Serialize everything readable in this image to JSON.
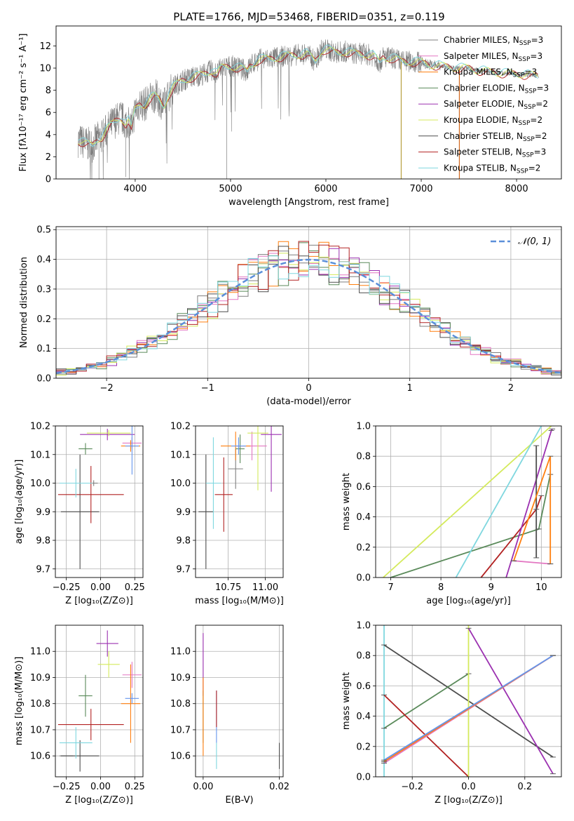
{
  "figure": {
    "title": "PLATE=1766, MJD=53468, FIBERID=0351, z=0.119"
  },
  "colors": {
    "Chabrier MILES": "#7f7f7f",
    "Salpeter MILES": "#e377c2",
    "Kroupa MILES": "#ff7f0e",
    "Chabrier ELODIE": "#5a8a5a",
    "Salpeter ELODIE": "#9b30b0",
    "Kroupa ELODIE": "#d4ea5c",
    "Chabrier STELIB": "#4d4d4d",
    "Salpeter STELIB": "#b22222",
    "Kroupa STELIB": "#7fd7df",
    "extra_blue": "#6495ed",
    "gaussian": "#5b8fd9"
  },
  "chart_data": [
    {
      "id": "spectrum",
      "type": "line",
      "title": "PLATE=1766, MJD=53468, FIBERID=0351, z=0.119",
      "xlabel": "wavelength [Angstrom, rest frame]",
      "ylabel": "Flux [fλ10⁻¹⁷ erg cm⁻² s⁻¹ A⁻¹]",
      "xlim": [
        3170,
        8470
      ],
      "ylim": [
        0,
        13.8
      ],
      "xticks": [
        4000,
        5000,
        6000,
        7000,
        8000
      ],
      "yticks": [
        0,
        2,
        4,
        6,
        8,
        10,
        12
      ],
      "x_range_data": [
        3400,
        8230
      ],
      "continuum": [
        [
          3400,
          3.5
        ],
        [
          3480,
          3.2
        ],
        [
          3550,
          3.0
        ],
        [
          3600,
          3.6
        ],
        [
          3650,
          3.8
        ],
        [
          3700,
          4.4
        ],
        [
          3750,
          4.9
        ],
        [
          3800,
          5.3
        ],
        [
          3850,
          5.6
        ],
        [
          3900,
          5.0
        ],
        [
          3930,
          5.3
        ],
        [
          3960,
          4.5
        ],
        [
          4000,
          6.3
        ],
        [
          4050,
          6.8
        ],
        [
          4100,
          6.7
        ],
        [
          4150,
          7.2
        ],
        [
          4200,
          7.5
        ],
        [
          4250,
          7.2
        ],
        [
          4300,
          6.6
        ],
        [
          4350,
          7.6
        ],
        [
          4400,
          8.3
        ],
        [
          4450,
          8.6
        ],
        [
          4500,
          8.9
        ],
        [
          4600,
          9.2
        ],
        [
          4700,
          9.4
        ],
        [
          4800,
          9.8
        ],
        [
          4861,
          9.5
        ],
        [
          4900,
          10.0
        ],
        [
          5000,
          10.2
        ],
        [
          5100,
          10.0
        ],
        [
          5175,
          9.7
        ],
        [
          5200,
          10.2
        ],
        [
          5300,
          10.8
        ],
        [
          5400,
          10.8
        ],
        [
          5500,
          11.0
        ],
        [
          5600,
          11.1
        ],
        [
          5700,
          11.2
        ],
        [
          5800,
          11.3
        ],
        [
          5890,
          10.6
        ],
        [
          5950,
          11.6
        ],
        [
          6000,
          11.7
        ],
        [
          6100,
          11.4
        ],
        [
          6200,
          11.5
        ],
        [
          6300,
          11.3
        ],
        [
          6400,
          11.3
        ],
        [
          6500,
          11.1
        ],
        [
          6563,
          10.5
        ],
        [
          6600,
          11.0
        ],
        [
          6700,
          10.9
        ],
        [
          6800,
          10.6
        ],
        [
          6900,
          10.6
        ],
        [
          7000,
          10.5
        ],
        [
          7100,
          10.3
        ],
        [
          7200,
          10.2
        ],
        [
          7300,
          10.1
        ],
        [
          7400,
          10.0
        ],
        [
          7500,
          10.0
        ],
        [
          7600,
          9.8
        ],
        [
          7700,
          9.7
        ],
        [
          7800,
          9.6
        ],
        [
          7900,
          9.5
        ],
        [
          8000,
          9.5
        ],
        [
          8100,
          9.4
        ],
        [
          8230,
          9.3
        ]
      ],
      "observed_dips": [
        [
          4960,
          0.0
        ],
        [
          3620,
          0.0
        ],
        [
          3900,
          0.3
        ],
        [
          6790,
          0.0
        ],
        [
          7400,
          0.0
        ]
      ],
      "legend": [
        "Chabrier MILES, N_SSP=3",
        "Salpeter MILES, N_SSP=3",
        "Kroupa MILES, N_SSP=3",
        "Chabrier ELODIE, N_SSP=3",
        "Salpeter ELODIE, N_SSP=2",
        "Kroupa ELODIE, N_SSP=2",
        "Chabrier STELIB, N_SSP=2",
        "Salpeter STELIB, N_SSP=3",
        "Kroupa STELIB, N_SSP=2"
      ],
      "legend_placement": "right"
    },
    {
      "id": "residuals",
      "type": "line",
      "xlabel": "(data-model)/error",
      "ylabel": "Normed distribution",
      "xlim": [
        -2.5,
        2.5
      ],
      "ylim": [
        0,
        0.51
      ],
      "xticks": [
        -2,
        -1,
        0,
        1,
        2
      ],
      "yticks": [
        0.0,
        0.1,
        0.2,
        0.3,
        0.4,
        0.5
      ],
      "grid": true,
      "legend": [
        "𝒩(0, 1)"
      ],
      "legend_placement": "top-right",
      "bin_width": 0.1,
      "curve": "gaussian N(0,1)"
    },
    {
      "id": "age-vs-Z",
      "type": "scatter",
      "xlabel": "Z [log₁₀(Z/Z⊙)]",
      "ylabel": "age  [log₁₀(age/yr)]",
      "xlim": [
        -0.33,
        0.31
      ],
      "ylim": [
        9.67,
        10.2
      ],
      "xticks": [
        -0.25,
        0.0,
        0.25
      ],
      "yticks": [
        9.7,
        9.8,
        9.9,
        10.0,
        10.1,
        10.2
      ],
      "points": [
        {
          "s": "Chabrier MILES",
          "x": -0.05,
          "y": 10.0,
          "xe": 0.03,
          "ye": 0.01
        },
        {
          "s": "Salpeter MILES",
          "x": 0.23,
          "y": 10.14,
          "xe": 0.07,
          "ye": 0.02
        },
        {
          "s": "Kroupa MILES",
          "x": 0.22,
          "y": 10.13,
          "xe": 0.07,
          "ye": 0.02
        },
        {
          "s": "Chabrier ELODIE",
          "x": -0.11,
          "y": 10.12,
          "xe": 0.05,
          "ye": 0.02
        },
        {
          "s": "Salpeter ELODIE",
          "x": 0.05,
          "y": 10.17,
          "xe": 0.2,
          "ye": 0.02
        },
        {
          "s": "Kroupa ELODIE",
          "x": 0.06,
          "y": 10.175,
          "xe": 0.16,
          "ye": 0.01
        },
        {
          "s": "Chabrier STELIB",
          "x": -0.15,
          "y": 9.9,
          "xe": 0.14,
          "ye": 0.2
        },
        {
          "s": "Salpeter STELIB",
          "x": -0.07,
          "y": 9.96,
          "xe": 0.24,
          "ye": 0.1
        },
        {
          "s": "Kroupa STELIB",
          "x": -0.18,
          "y": 10.0,
          "xe": 0.12,
          "ye": 0.05
        },
        {
          "s": "extra_blue",
          "x": 0.23,
          "y": 10.13,
          "xe": 0.05,
          "ye": 0.1
        }
      ]
    },
    {
      "id": "age-vs-mass",
      "type": "scatter",
      "xlabel": "mass [log₁₀(M/M⊙)]",
      "ylabel": "",
      "xlim": [
        10.53,
        11.12
      ],
      "ylim": [
        9.67,
        10.2
      ],
      "xticks": [
        10.75,
        11.0
      ],
      "yticks": [
        9.7,
        9.8,
        9.9,
        10.0,
        10.1,
        10.2
      ],
      "points": [
        {
          "s": "Chabrier MILES",
          "x": 10.8,
          "y": 10.05,
          "xe": 0.05,
          "ye": 0.07
        },
        {
          "s": "Salpeter MILES",
          "x": 10.91,
          "y": 10.13,
          "xe": 0.1,
          "ye": 0.05
        },
        {
          "s": "Kroupa MILES",
          "x": 10.8,
          "y": 10.13,
          "xe": 0.1,
          "ye": 0.05
        },
        {
          "s": "Chabrier ELODIE",
          "x": 10.83,
          "y": 10.12,
          "xe": 0.03,
          "ye": 0.05
        },
        {
          "s": "Salpeter ELODIE",
          "x": 11.04,
          "y": 10.17,
          "xe": 0.07,
          "ye": 0.2
        },
        {
          "s": "Kroupa ELODIE",
          "x": 10.95,
          "y": 10.175,
          "xe": 0.07,
          "ye": 0.2
        },
        {
          "s": "Chabrier STELIB",
          "x": 10.6,
          "y": 9.9,
          "xe": 0.05,
          "ye": 0.2
        },
        {
          "s": "Salpeter STELIB",
          "x": 10.72,
          "y": 9.96,
          "xe": 0.06,
          "ye": 0.13
        },
        {
          "s": "Kroupa STELIB",
          "x": 10.65,
          "y": 10.0,
          "xe": 0.05,
          "ye": 0.16
        },
        {
          "s": "extra_blue",
          "x": 10.82,
          "y": 10.13,
          "xe": 0.05,
          "ye": 0.03
        }
      ]
    },
    {
      "id": "mass-weight-vs-age",
      "type": "line",
      "xlabel": "age  [log₁₀(age/yr)]",
      "ylabel": "mass weight",
      "xlim": [
        6.7,
        10.4
      ],
      "ylim": [
        0,
        1.0
      ],
      "xticks": [
        7,
        8,
        9,
        10
      ],
      "yticks": [
        0.0,
        0.2,
        0.4,
        0.6,
        0.8,
        1.0
      ],
      "grid": true,
      "series": [
        {
          "s": "Kroupa ELODIE",
          "x": [
            6.85,
            10.2
          ],
          "y": [
            0.0,
            1.0
          ]
        },
        {
          "s": "Chabrier ELODIE",
          "x": [
            7.0,
            9.95,
            10.18
          ],
          "y": [
            0.0,
            0.32,
            0.68
          ]
        },
        {
          "s": "Kroupa STELIB",
          "x": [
            8.3,
            10.0
          ],
          "y": [
            0.0,
            1.0
          ]
        },
        {
          "s": "Salpeter STELIB",
          "x": [
            8.8,
            9.9,
            10.0
          ],
          "y": [
            0.0,
            0.45,
            0.54
          ]
        },
        {
          "s": "Salpeter ELODIE",
          "x": [
            9.3,
            10.2,
            10.22
          ],
          "y": [
            0.0,
            0.97,
            0.98
          ]
        },
        {
          "s": "Chabrier STELIB",
          "x": [
            9.9,
            9.9
          ],
          "y": [
            0.13,
            0.87
          ]
        },
        {
          "s": "Salpeter MILES",
          "x": [
            9.45,
            10.18
          ],
          "y": [
            0.11,
            0.09
          ]
        },
        {
          "s": "Kroupa MILES",
          "x": [
            9.45,
            10.18,
            10.18
          ],
          "y": [
            0.11,
            0.8,
            0.09
          ]
        }
      ]
    },
    {
      "id": "mass-vs-Z",
      "type": "scatter",
      "xlabel": "Z [log₁₀(Z/Z⊙)]",
      "ylabel": "mass [log₁₀(M/M⊙)]",
      "xlim": [
        -0.33,
        0.31
      ],
      "ylim": [
        10.52,
        11.1
      ],
      "xticks": [
        -0.25,
        0.0,
        0.25
      ],
      "yticks": [
        10.6,
        10.7,
        10.8,
        10.9,
        11.0
      ],
      "points": [
        {
          "s": "Chabrier MILES",
          "x": -0.25,
          "y": 10.6,
          "xe": 0.05,
          "ye": 0.0
        },
        {
          "s": "Salpeter MILES",
          "x": 0.23,
          "y": 10.91,
          "xe": 0.07,
          "ye": 0.05
        },
        {
          "s": "Kroupa MILES",
          "x": 0.22,
          "y": 10.8,
          "xe": 0.07,
          "ye": 0.15
        },
        {
          "s": "Chabrier ELODIE",
          "x": -0.11,
          "y": 10.83,
          "xe": 0.05,
          "ye": 0.08
        },
        {
          "s": "Salpeter ELODIE",
          "x": 0.05,
          "y": 11.03,
          "xe": 0.08,
          "ye": 0.05
        },
        {
          "s": "Kroupa ELODIE",
          "x": 0.06,
          "y": 10.95,
          "xe": 0.08,
          "ye": 0.05
        },
        {
          "s": "Chabrier STELIB",
          "x": -0.15,
          "y": 10.6,
          "xe": 0.14,
          "ye": 0.06
        },
        {
          "s": "Salpeter STELIB",
          "x": -0.07,
          "y": 10.72,
          "xe": 0.24,
          "ye": 0.06
        },
        {
          "s": "Kroupa STELIB",
          "x": -0.18,
          "y": 10.65,
          "xe": 0.12,
          "ye": 0.06
        },
        {
          "s": "extra_blue",
          "x": 0.23,
          "y": 10.82,
          "xe": 0.05,
          "ye": 0.02
        }
      ]
    },
    {
      "id": "mass-vs-EBV",
      "type": "scatter",
      "xlabel": "E(B-V)",
      "ylabel": "",
      "xlim": [
        -0.002,
        0.021
      ],
      "ylim": [
        10.52,
        11.1
      ],
      "xticks": [
        0.0,
        0.02
      ],
      "yticks": [
        10.6,
        10.7,
        10.8,
        10.9,
        11.0
      ],
      "points": [
        {
          "s": "Salpeter ELODIE",
          "x": 0.0,
          "y": 10.95,
          "xe": 0.0,
          "ye": 0.12
        },
        {
          "s": "Chabrier ELODIE",
          "x": 0.0,
          "y": 10.75,
          "xe": 0.0,
          "ye": 0.1
        },
        {
          "s": "Kroupa MILES",
          "x": 0.0,
          "y": 10.75,
          "xe": 0.0,
          "ye": 0.15
        },
        {
          "s": "extra_blue",
          "x": 0.0035,
          "y": 10.75,
          "xe": 0.0,
          "ye": 0.1
        },
        {
          "s": "Salpeter STELIB",
          "x": 0.0035,
          "y": 10.78,
          "xe": 0.0,
          "ye": 0.07
        },
        {
          "s": "Kroupa STELIB",
          "x": 0.0035,
          "y": 10.6,
          "xe": 0.0,
          "ye": 0.05
        },
        {
          "s": "Chabrier STELIB",
          "x": 0.02,
          "y": 10.6,
          "xe": 0.0,
          "ye": 0.05
        }
      ]
    },
    {
      "id": "mass-weight-vs-Z",
      "type": "line",
      "xlabel": "Z [log₁₀(Z/Z⊙)]",
      "ylabel": "mass weight",
      "xlim": [
        -0.33,
        0.33
      ],
      "ylim": [
        0,
        1.0
      ],
      "xticks": [
        -0.2,
        0.0,
        0.2
      ],
      "yticks": [
        0.0,
        0.2,
        0.4,
        0.6,
        0.8,
        1.0
      ],
      "grid": true,
      "series": [
        {
          "s": "Kroupa STELIB",
          "x": [
            -0.3,
            -0.3
          ],
          "y": [
            0.0,
            1.0
          ]
        },
        {
          "s": "Chabrier STELIB",
          "x": [
            -0.3,
            0.3
          ],
          "y": [
            0.87,
            0.13
          ]
        },
        {
          "s": "Chabrier ELODIE",
          "x": [
            -0.3,
            0.0
          ],
          "y": [
            0.32,
            0.68
          ]
        },
        {
          "s": "Salpeter STELIB",
          "x": [
            -0.3,
            0.0
          ],
          "y": [
            0.54,
            0.0
          ]
        },
        {
          "s": "Kroupa ELODIE",
          "x": [
            0.0,
            0.0
          ],
          "y": [
            0.0,
            1.0
          ]
        },
        {
          "s": "Salpeter ELODIE",
          "x": [
            0.0,
            0.3
          ],
          "y": [
            0.98,
            0.02
          ]
        },
        {
          "s": "Salpeter MILES",
          "x": [
            -0.3,
            0.3
          ],
          "y": [
            0.09,
            0.8
          ]
        },
        {
          "s": "Kroupa MILES",
          "x": [
            -0.3,
            0.3
          ],
          "y": [
            0.1,
            0.8
          ]
        },
        {
          "s": "extra_blue",
          "x": [
            -0.3,
            0.3
          ],
          "y": [
            0.11,
            0.8
          ]
        }
      ]
    }
  ]
}
